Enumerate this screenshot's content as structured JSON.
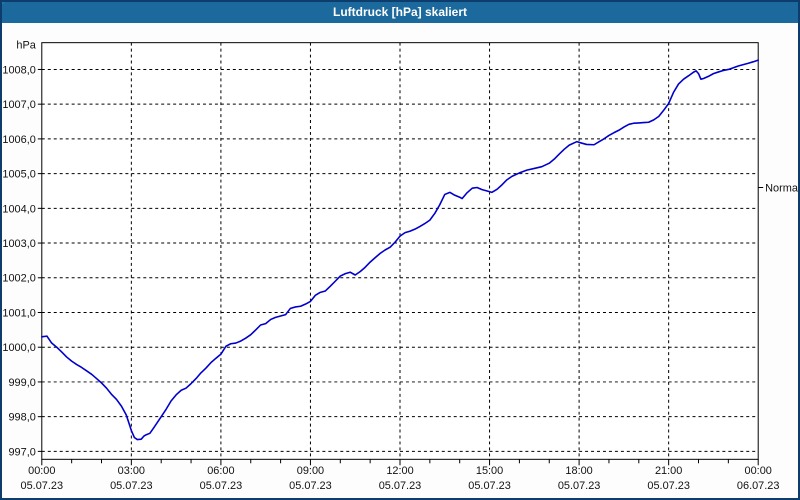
{
  "window": {
    "title": "Luftdruck [hPa] skaliert"
  },
  "colors": {
    "titlebar_bg": "#1e6fa5",
    "title_text": "#ffffff",
    "window_border": "#0c3d6d",
    "plot_bg": "#ffffff",
    "grid": "#000000",
    "axis": "#000000",
    "label_text": "#111111",
    "line": "#0000cc"
  },
  "chart_data": {
    "type": "line",
    "title": "Luftdruck [hPa] skaliert",
    "xlabel": "",
    "ylabel": "hPa",
    "ylim": [
      996.8,
      1008.8
    ],
    "xlim_hours": [
      0,
      24
    ],
    "grid": "dotted, both axes, at major ticks",
    "legend_position": "none",
    "y_axis": {
      "unit_label": "hPa",
      "ticks": [
        {
          "value": 1008,
          "label": "1008,0"
        },
        {
          "value": 1007,
          "label": "1007,0"
        },
        {
          "value": 1006,
          "label": "1006,0"
        },
        {
          "value": 1005,
          "label": "1005,0"
        },
        {
          "value": 1004,
          "label": "1004,0"
        },
        {
          "value": 1003,
          "label": "1003,0"
        },
        {
          "value": 1002,
          "label": "1002,0"
        },
        {
          "value": 1001,
          "label": "1001,0"
        },
        {
          "value": 1000,
          "label": "1000,0"
        },
        {
          "value": 999,
          "label": "999,0"
        },
        {
          "value": 998,
          "label": "998,0"
        },
        {
          "value": 997,
          "label": "997,0"
        }
      ]
    },
    "x_axis": {
      "minor_tick_every_hours": 1,
      "major_ticks": [
        {
          "hour": 0,
          "time": "00:00",
          "date": "05.07.23"
        },
        {
          "hour": 3,
          "time": "03:00",
          "date": "05.07.23"
        },
        {
          "hour": 6,
          "time": "06:00",
          "date": "05.07.23"
        },
        {
          "hour": 9,
          "time": "09:00",
          "date": "05.07.23"
        },
        {
          "hour": 12,
          "time": "12:00",
          "date": "05.07.23"
        },
        {
          "hour": 15,
          "time": "15:00",
          "date": "05.07.23"
        },
        {
          "hour": 18,
          "time": "18:00",
          "date": "05.07.23"
        },
        {
          "hour": 21,
          "time": "21:00",
          "date": "05.07.23"
        },
        {
          "hour": 24,
          "time": "00:00",
          "date": "06.07.23"
        }
      ]
    },
    "annotation": {
      "label": "Normal",
      "value_hpa": 1004.6,
      "position": "right-edge"
    },
    "series": [
      {
        "name": "Luftdruck",
        "color": "#0000cc",
        "points": [
          [
            0,
            1000.3
          ],
          [
            0.17,
            1000.32
          ],
          [
            0.33,
            1000.12
          ],
          [
            0.5,
            1000.0
          ],
          [
            0.67,
            999.86
          ],
          [
            0.83,
            999.72
          ],
          [
            1,
            999.6
          ],
          [
            1.17,
            999.5
          ],
          [
            1.33,
            999.42
          ],
          [
            1.5,
            999.32
          ],
          [
            1.67,
            999.22
          ],
          [
            1.83,
            999.1
          ],
          [
            2,
            998.97
          ],
          [
            2.17,
            998.82
          ],
          [
            2.33,
            998.65
          ],
          [
            2.5,
            998.5
          ],
          [
            2.67,
            998.3
          ],
          [
            2.83,
            998.05
          ],
          [
            3,
            997.6
          ],
          [
            3.1,
            997.4
          ],
          [
            3.2,
            997.34
          ],
          [
            3.33,
            997.35
          ],
          [
            3.42,
            997.44
          ],
          [
            3.5,
            997.48
          ],
          [
            3.62,
            997.52
          ],
          [
            3.75,
            997.68
          ],
          [
            4,
            998.0
          ],
          [
            4.17,
            998.22
          ],
          [
            4.33,
            998.45
          ],
          [
            4.5,
            998.63
          ],
          [
            4.67,
            998.76
          ],
          [
            4.83,
            998.82
          ],
          [
            5,
            998.95
          ],
          [
            5.17,
            999.1
          ],
          [
            5.33,
            999.26
          ],
          [
            5.5,
            999.4
          ],
          [
            5.67,
            999.56
          ],
          [
            5.83,
            999.68
          ],
          [
            6,
            999.8
          ],
          [
            6.17,
            1000.03
          ],
          [
            6.33,
            1000.1
          ],
          [
            6.5,
            1000.12
          ],
          [
            6.67,
            1000.18
          ],
          [
            6.83,
            1000.26
          ],
          [
            7,
            1000.36
          ],
          [
            7.17,
            1000.5
          ],
          [
            7.33,
            1000.64
          ],
          [
            7.5,
            1000.68
          ],
          [
            7.67,
            1000.8
          ],
          [
            7.83,
            1000.86
          ],
          [
            8,
            1000.9
          ],
          [
            8.17,
            1000.94
          ],
          [
            8.33,
            1001.12
          ],
          [
            8.5,
            1001.16
          ],
          [
            8.67,
            1001.18
          ],
          [
            8.83,
            1001.24
          ],
          [
            9,
            1001.32
          ],
          [
            9.17,
            1001.5
          ],
          [
            9.33,
            1001.58
          ],
          [
            9.5,
            1001.62
          ],
          [
            9.67,
            1001.76
          ],
          [
            9.83,
            1001.9
          ],
          [
            10,
            1002.05
          ],
          [
            10.17,
            1002.12
          ],
          [
            10.33,
            1002.16
          ],
          [
            10.5,
            1002.08
          ],
          [
            10.67,
            1002.18
          ],
          [
            10.83,
            1002.3
          ],
          [
            11,
            1002.45
          ],
          [
            11.17,
            1002.58
          ],
          [
            11.33,
            1002.7
          ],
          [
            11.5,
            1002.8
          ],
          [
            11.67,
            1002.88
          ],
          [
            11.83,
            1003.02
          ],
          [
            12,
            1003.2
          ],
          [
            12.17,
            1003.3
          ],
          [
            12.33,
            1003.34
          ],
          [
            12.5,
            1003.4
          ],
          [
            12.67,
            1003.48
          ],
          [
            12.83,
            1003.56
          ],
          [
            13,
            1003.66
          ],
          [
            13.17,
            1003.86
          ],
          [
            13.33,
            1004.1
          ],
          [
            13.5,
            1004.4
          ],
          [
            13.67,
            1004.46
          ],
          [
            13.83,
            1004.38
          ],
          [
            14,
            1004.32
          ],
          [
            14.08,
            1004.28
          ],
          [
            14.25,
            1004.45
          ],
          [
            14.42,
            1004.58
          ],
          [
            14.58,
            1004.6
          ],
          [
            14.75,
            1004.54
          ],
          [
            14.92,
            1004.5
          ],
          [
            15.08,
            1004.46
          ],
          [
            15.25,
            1004.55
          ],
          [
            15.42,
            1004.68
          ],
          [
            15.58,
            1004.82
          ],
          [
            15.75,
            1004.92
          ],
          [
            16,
            1005.02
          ],
          [
            16.25,
            1005.1
          ],
          [
            16.5,
            1005.15
          ],
          [
            16.75,
            1005.2
          ],
          [
            17,
            1005.3
          ],
          [
            17.17,
            1005.42
          ],
          [
            17.33,
            1005.56
          ],
          [
            17.5,
            1005.7
          ],
          [
            17.67,
            1005.82
          ],
          [
            17.92,
            1005.92
          ],
          [
            18.08,
            1005.88
          ],
          [
            18.25,
            1005.84
          ],
          [
            18.5,
            1005.83
          ],
          [
            18.67,
            1005.92
          ],
          [
            18.83,
            1006.0
          ],
          [
            19,
            1006.1
          ],
          [
            19.17,
            1006.18
          ],
          [
            19.33,
            1006.25
          ],
          [
            19.5,
            1006.34
          ],
          [
            19.67,
            1006.42
          ],
          [
            19.83,
            1006.45
          ],
          [
            20,
            1006.46
          ],
          [
            20.17,
            1006.47
          ],
          [
            20.33,
            1006.48
          ],
          [
            20.5,
            1006.55
          ],
          [
            20.67,
            1006.65
          ],
          [
            20.83,
            1006.82
          ],
          [
            21,
            1007.02
          ],
          [
            21.17,
            1007.35
          ],
          [
            21.33,
            1007.58
          ],
          [
            21.5,
            1007.72
          ],
          [
            21.67,
            1007.82
          ],
          [
            21.83,
            1007.92
          ],
          [
            21.92,
            1007.96
          ],
          [
            22,
            1007.88
          ],
          [
            22.08,
            1007.72
          ],
          [
            22.17,
            1007.74
          ],
          [
            22.33,
            1007.8
          ],
          [
            22.5,
            1007.88
          ],
          [
            22.67,
            1007.93
          ],
          [
            22.83,
            1007.97
          ],
          [
            23,
            1008.0
          ],
          [
            23.17,
            1008.05
          ],
          [
            23.33,
            1008.1
          ],
          [
            23.5,
            1008.14
          ],
          [
            23.67,
            1008.18
          ],
          [
            23.83,
            1008.22
          ],
          [
            24,
            1008.27
          ]
        ]
      }
    ]
  }
}
